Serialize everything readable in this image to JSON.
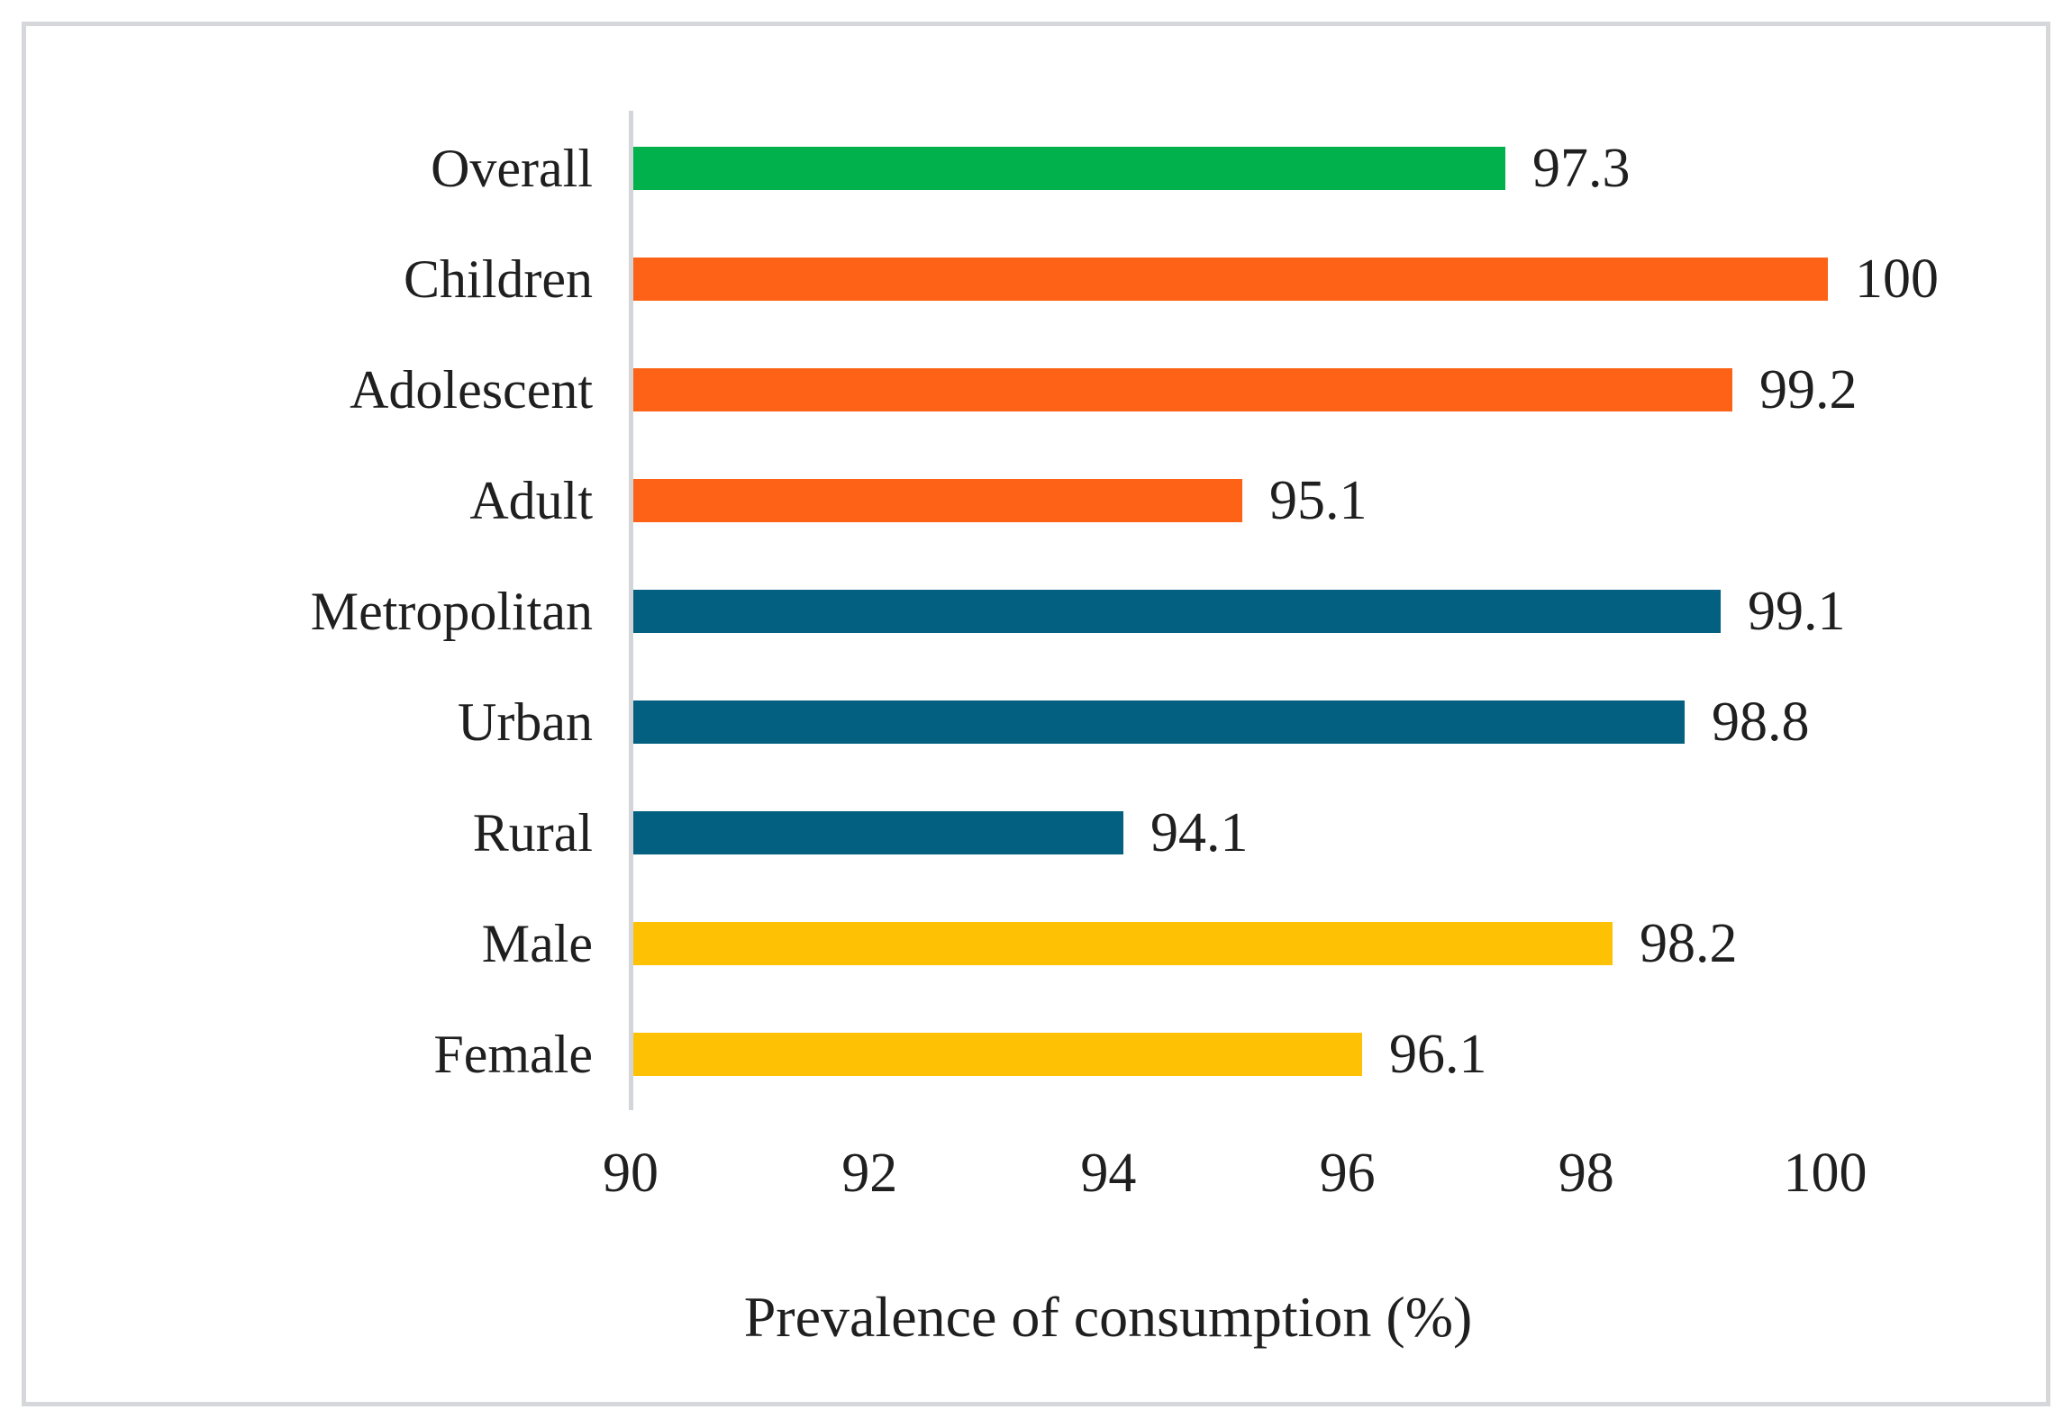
{
  "chart_data": {
    "type": "bar",
    "orientation": "horizontal",
    "title": "",
    "xlabel": "Prevalence of consumption (%)",
    "ylabel": "",
    "categories": [
      "Overall",
      "Children",
      "Adolescent",
      "Adult",
      "Metropolitan",
      "Urban",
      "Rural",
      "Male",
      "Female"
    ],
    "values": [
      97.3,
      100,
      99.2,
      95.1,
      99.1,
      98.8,
      94.1,
      98.2,
      96.1
    ],
    "value_labels": [
      "97.3",
      "100",
      "99.2",
      "95.1",
      "99.1",
      "98.8",
      "94.1",
      "98.2",
      "96.1"
    ],
    "bar_colors": [
      "#00B14C",
      "#FD6216",
      "#FD6216",
      "#FD6216",
      "#046080",
      "#046080",
      "#046080",
      "#FFC104",
      "#FFC104"
    ],
    "series_groups": [
      {
        "name": "overall",
        "color": "#00B14C"
      },
      {
        "name": "age-group",
        "color": "#FD6216"
      },
      {
        "name": "residence",
        "color": "#046080"
      },
      {
        "name": "sex",
        "color": "#FFC104"
      }
    ],
    "xlim": [
      90,
      100
    ],
    "xticks": [
      "90",
      "92",
      "94",
      "96",
      "98",
      "100"
    ],
    "grid": false,
    "legend": false,
    "colors": {
      "text": "#1f1f1f",
      "axis_line": "#d3d5d8",
      "frame_border": "#d5d7da",
      "background": "#ffffff"
    }
  }
}
